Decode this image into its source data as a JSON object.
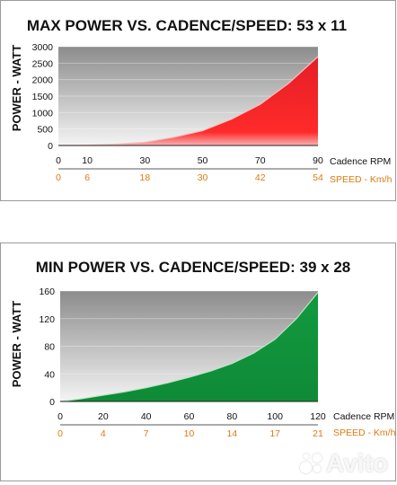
{
  "colors": {
    "red": "#e41e26",
    "green": "#129a3f",
    "orange": "#e07a10",
    "gray_dark": "#8c8c8c",
    "gray_light": "#f2f2f2"
  },
  "chart_data": [
    {
      "type": "area",
      "title": "MAX POWER VS. CADENCE/SPEED: 53 x 11",
      "ylabel": "POWER - WATT",
      "xlabel": "Cadence RPM",
      "xlabel2": "SPEED - Km/h",
      "x_ticks": [
        "0",
        "10",
        "30",
        "50",
        "70",
        "90"
      ],
      "x_tick_values": [
        0,
        10,
        30,
        50,
        70,
        90
      ],
      "x2_ticks": [
        "0",
        "6",
        "18",
        "30",
        "42",
        "54"
      ],
      "y_ticks": [
        "0",
        "500",
        "1000",
        "1500",
        "2000",
        "2500",
        "3000"
      ],
      "ylim": [
        0,
        3000
      ],
      "xlim": [
        0,
        90
      ],
      "x": [
        0,
        10,
        20,
        30,
        40,
        50,
        60,
        70,
        80,
        90
      ],
      "values": [
        0,
        10,
        40,
        100,
        250,
        450,
        800,
        1250,
        1900,
        2700
      ],
      "fill": "red",
      "grid": true
    },
    {
      "type": "area",
      "title": "MIN POWER VS. CADENCE/SPEED: 39 x 28",
      "ylabel": "POWER - WATT",
      "xlabel": "Cadence RPM",
      "xlabel2": "SPEED - Km/h",
      "x_ticks": [
        "0",
        "20",
        "40",
        "60",
        "80",
        "100",
        "120"
      ],
      "x_tick_values": [
        0,
        20,
        40,
        60,
        80,
        100,
        120
      ],
      "x2_ticks": [
        "0",
        "4",
        "7",
        "10",
        "14",
        "17",
        "21"
      ],
      "y_ticks": [
        "0",
        "40",
        "80",
        "120",
        "160"
      ],
      "ylim": [
        0,
        160
      ],
      "xlim": [
        0,
        120
      ],
      "x": [
        0,
        10,
        20,
        30,
        40,
        50,
        60,
        70,
        80,
        90,
        100,
        110,
        120
      ],
      "values": [
        0,
        4,
        9,
        14,
        20,
        27,
        35,
        44,
        55,
        70,
        90,
        120,
        158
      ],
      "fill": "green",
      "grid": true
    }
  ],
  "watermark": {
    "text": "Avito"
  }
}
